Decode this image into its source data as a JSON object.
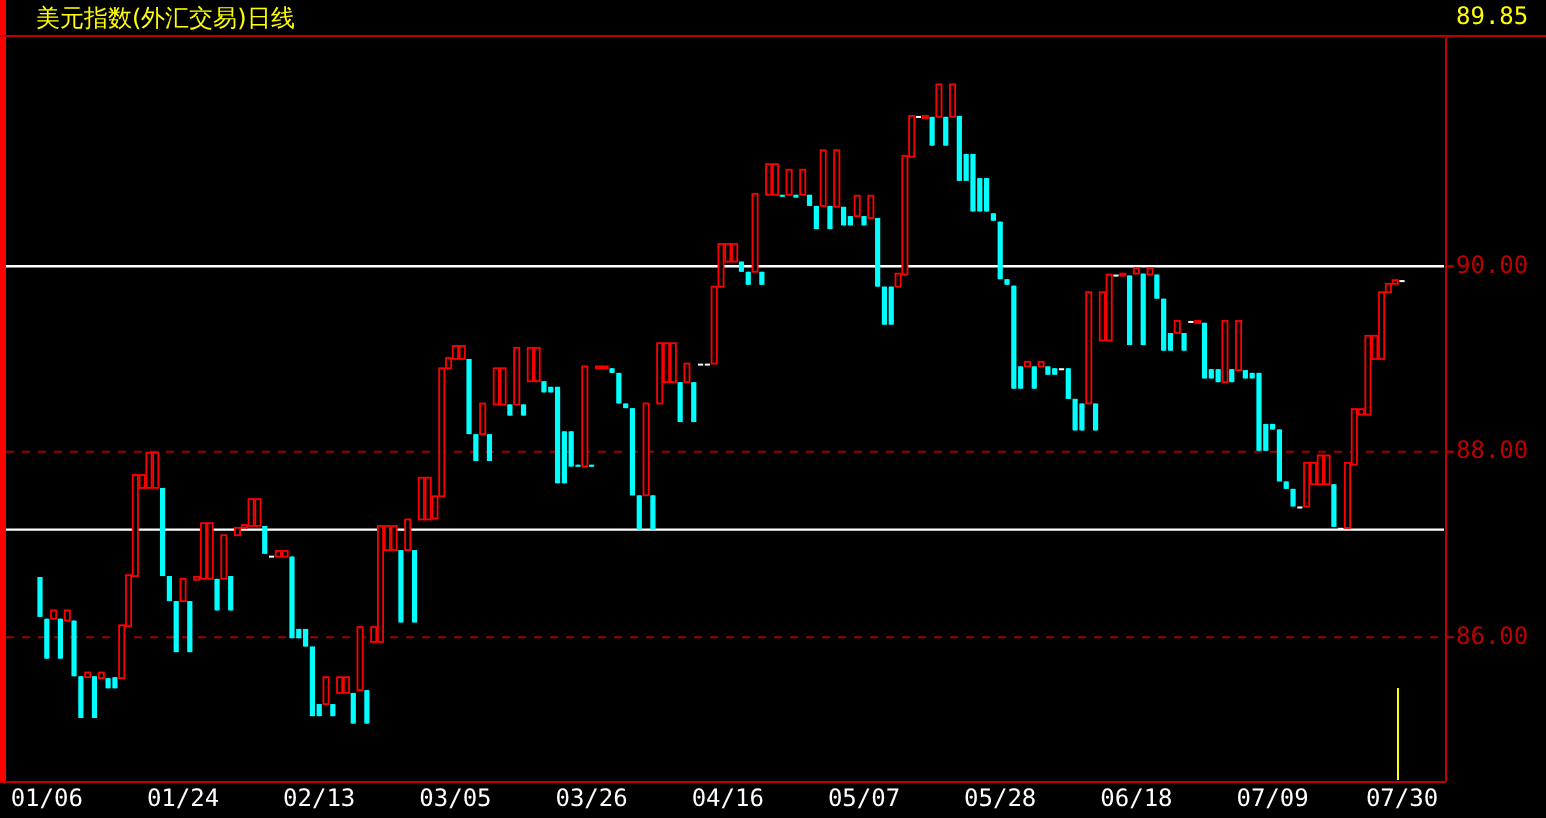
{
  "chart_data": {
    "type": "candlestick",
    "title": "美元指数(外汇交易)日线",
    "categories": [
      null,
      "01/06",
      null,
      null,
      null,
      null,
      null,
      null,
      null,
      null,
      null,
      null,
      null,
      null,
      null,
      null,
      null,
      null,
      null,
      null,
      null,
      "01/24",
      null,
      null,
      null,
      null,
      null,
      null,
      null,
      null,
      null,
      null,
      null,
      null,
      null,
      null,
      null,
      null,
      null,
      null,
      null,
      "02/13",
      null,
      null,
      null,
      null,
      null,
      null,
      null,
      null,
      null,
      null,
      null,
      null,
      null,
      null,
      null,
      null,
      null,
      null,
      null,
      "03/05",
      null,
      null,
      null,
      null,
      null,
      null,
      null,
      null,
      null,
      null,
      null,
      null,
      null,
      null,
      null,
      null,
      null,
      null,
      null,
      "03/26",
      null,
      null,
      null,
      null,
      null,
      null,
      null,
      null,
      null,
      null,
      null,
      null,
      null,
      null,
      null,
      null,
      null,
      null,
      null,
      "04/16",
      null,
      null,
      null,
      null,
      null,
      null,
      null,
      null,
      null,
      null,
      null,
      null,
      null,
      null,
      null,
      null,
      null,
      null,
      null,
      "05/07",
      null,
      null,
      null,
      null,
      null,
      null,
      null,
      null,
      null,
      null,
      null,
      null,
      null,
      null,
      null,
      null,
      null,
      null,
      null,
      "05/28",
      null,
      null,
      null,
      null,
      null,
      null,
      null,
      null,
      null,
      null,
      null,
      null,
      null,
      null,
      null,
      null,
      null,
      null,
      null,
      "06/18",
      null,
      null,
      null,
      null,
      null,
      null,
      null,
      null,
      null,
      null,
      null,
      null,
      null,
      null,
      null,
      null,
      null,
      null,
      null,
      "07/09",
      null,
      null,
      null,
      null,
      null,
      null,
      null,
      null,
      null,
      null,
      null,
      null,
      null,
      null,
      null,
      null,
      null,
      null,
      "07/30"
    ],
    "ohlc": [
      [
        86.65,
        86.65,
        86.22,
        86.22
      ],
      [
        86.2,
        86.2,
        85.77,
        85.77
      ],
      [
        86.2,
        86.29,
        86.2,
        86.29
      ],
      [
        86.2,
        86.2,
        85.77,
        85.77
      ],
      [
        86.18,
        86.29,
        86.18,
        86.29
      ],
      [
        86.18,
        86.18,
        85.58,
        85.58
      ],
      [
        85.58,
        85.58,
        85.13,
        85.13
      ],
      [
        85.57,
        85.62,
        85.57,
        85.62
      ],
      [
        85.58,
        85.58,
        85.13,
        85.13
      ],
      [
        85.56,
        85.62,
        85.56,
        85.62
      ],
      [
        85.56,
        85.56,
        85.45,
        85.45
      ],
      [
        85.57,
        85.57,
        85.45,
        85.45
      ],
      [
        85.56,
        86.13,
        85.56,
        86.13
      ],
      [
        86.12,
        86.67,
        86.12,
        86.67
      ],
      [
        86.66,
        87.75,
        86.66,
        87.75
      ],
      [
        87.61,
        87.75,
        87.61,
        87.75
      ],
      [
        87.61,
        87.99,
        87.61,
        87.99
      ],
      [
        87.61,
        87.99,
        87.61,
        87.99
      ],
      [
        87.61,
        87.61,
        86.66,
        86.66
      ],
      [
        86.66,
        86.66,
        86.39,
        86.39
      ],
      [
        86.39,
        86.39,
        85.84,
        85.84
      ],
      [
        86.39,
        86.63,
        86.39,
        86.63
      ],
      [
        86.39,
        86.39,
        85.84,
        85.84
      ],
      [
        86.62,
        86.65,
        86.62,
        86.65
      ],
      [
        86.63,
        87.23,
        86.63,
        87.23
      ],
      [
        86.63,
        87.23,
        86.63,
        87.23
      ],
      [
        86.63,
        86.63,
        86.29,
        86.29
      ],
      [
        86.63,
        87.1,
        86.63,
        87.1
      ],
      [
        86.66,
        86.66,
        86.29,
        86.29
      ],
      [
        87.1,
        87.18,
        87.1,
        87.18
      ],
      [
        87.18,
        87.21,
        87.18,
        87.21
      ],
      [
        87.2,
        87.49,
        87.2,
        87.49
      ],
      [
        87.2,
        87.49,
        87.2,
        87.49
      ],
      [
        87.2,
        87.2,
        86.9,
        86.9
      ],
      [
        86.88,
        86.88,
        86.88,
        86.88
      ],
      [
        86.87,
        86.93,
        86.87,
        86.93
      ],
      [
        86.87,
        86.93,
        86.87,
        86.93
      ],
      [
        86.87,
        86.87,
        85.99,
        85.99
      ],
      [
        86.09,
        86.09,
        85.99,
        85.99
      ],
      [
        86.09,
        86.09,
        85.9,
        85.9
      ],
      [
        85.9,
        85.9,
        85.15,
        85.15
      ],
      [
        85.28,
        85.28,
        85.15,
        85.15
      ],
      [
        85.28,
        85.57,
        85.28,
        85.57
      ],
      [
        85.28,
        85.28,
        85.15,
        85.15
      ],
      [
        85.4,
        85.57,
        85.4,
        85.57
      ],
      [
        85.4,
        85.57,
        85.4,
        85.57
      ],
      [
        85.4,
        85.4,
        85.07,
        85.07
      ],
      [
        85.43,
        86.11,
        85.43,
        86.11
      ],
      [
        85.43,
        85.43,
        85.07,
        85.07
      ],
      [
        85.95,
        86.11,
        85.95,
        86.11
      ],
      [
        85.95,
        87.2,
        85.95,
        87.2
      ],
      [
        86.94,
        87.2,
        86.94,
        87.2
      ],
      [
        86.94,
        87.2,
        86.94,
        87.2
      ],
      [
        86.94,
        86.94,
        86.16,
        86.16
      ],
      [
        86.94,
        87.27,
        86.94,
        87.27
      ],
      [
        86.94,
        86.94,
        86.16,
        86.16
      ],
      [
        87.27,
        87.72,
        87.27,
        87.72
      ],
      [
        87.27,
        87.72,
        87.27,
        87.72
      ],
      [
        87.28,
        87.52,
        87.28,
        87.52
      ],
      [
        87.52,
        88.9,
        87.52,
        88.9
      ],
      [
        88.9,
        89.01,
        88.9,
        89.01
      ],
      [
        89.0,
        89.14,
        89.0,
        89.14
      ],
      [
        89.0,
        89.14,
        89.0,
        89.14
      ],
      [
        89.0,
        89.0,
        88.19,
        88.19
      ],
      [
        88.19,
        88.19,
        87.9,
        87.9
      ],
      [
        88.19,
        88.52,
        88.19,
        88.52
      ],
      [
        88.19,
        88.19,
        87.9,
        87.9
      ],
      [
        88.51,
        88.9,
        88.51,
        88.9
      ],
      [
        88.51,
        88.9,
        88.51,
        88.9
      ],
      [
        88.51,
        88.51,
        88.39,
        88.39
      ],
      [
        88.51,
        89.12,
        88.51,
        89.12
      ],
      [
        88.51,
        88.51,
        88.39,
        88.39
      ],
      [
        88.76,
        89.12,
        88.76,
        89.12
      ],
      [
        88.76,
        89.12,
        88.76,
        89.12
      ],
      [
        88.76,
        88.76,
        88.64,
        88.64
      ],
      [
        88.7,
        88.7,
        88.64,
        88.64
      ],
      [
        88.7,
        88.7,
        87.66,
        87.66
      ],
      [
        88.22,
        88.22,
        87.66,
        87.66
      ],
      [
        88.22,
        88.22,
        87.84,
        87.84
      ],
      [
        87.86,
        87.86,
        87.84,
        87.84
      ],
      [
        87.84,
        88.92,
        87.84,
        88.92
      ],
      [
        87.86,
        87.86,
        87.84,
        87.84
      ],
      [
        88.9,
        88.92,
        88.9,
        88.92
      ],
      [
        88.9,
        88.92,
        88.9,
        88.92
      ],
      [
        88.9,
        88.9,
        88.85,
        88.85
      ],
      [
        88.85,
        88.85,
        88.52,
        88.52
      ],
      [
        88.52,
        88.52,
        88.47,
        88.47
      ],
      [
        88.47,
        88.47,
        87.53,
        87.53
      ],
      [
        87.53,
        87.53,
        87.16,
        87.16
      ],
      [
        87.53,
        88.52,
        87.53,
        88.52
      ],
      [
        87.53,
        87.53,
        87.16,
        87.16
      ],
      [
        88.52,
        89.17,
        88.52,
        89.17
      ],
      [
        88.75,
        89.17,
        88.75,
        89.17
      ],
      [
        88.75,
        89.17,
        88.75,
        89.17
      ],
      [
        88.75,
        88.75,
        88.32,
        88.32
      ],
      [
        88.75,
        88.95,
        88.75,
        88.95
      ],
      [
        88.75,
        88.75,
        88.32,
        88.32
      ],
      [
        88.95,
        88.95,
        88.95,
        88.95
      ],
      [
        88.95,
        88.95,
        88.95,
        88.95
      ],
      [
        88.95,
        89.78,
        88.95,
        89.78
      ],
      [
        89.78,
        90.24,
        89.78,
        90.24
      ],
      [
        90.05,
        90.24,
        90.05,
        90.24
      ],
      [
        90.05,
        90.24,
        90.05,
        90.24
      ],
      [
        90.05,
        90.05,
        89.94,
        89.94
      ],
      [
        89.94,
        89.94,
        89.8,
        89.8
      ],
      [
        89.94,
        90.78,
        89.94,
        90.78
      ],
      [
        89.94,
        89.94,
        89.8,
        89.8
      ],
      [
        90.77,
        91.1,
        90.77,
        91.1
      ],
      [
        90.77,
        91.1,
        90.77,
        91.1
      ],
      [
        90.77,
        90.77,
        90.75,
        90.75
      ],
      [
        90.77,
        91.04,
        90.77,
        91.04
      ],
      [
        90.77,
        90.77,
        90.74,
        90.74
      ],
      [
        90.77,
        91.04,
        90.77,
        91.04
      ],
      [
        90.77,
        90.77,
        90.65,
        90.65
      ],
      [
        90.65,
        90.65,
        90.4,
        90.4
      ],
      [
        90.65,
        91.25,
        90.65,
        91.25
      ],
      [
        90.65,
        90.65,
        90.4,
        90.4
      ],
      [
        90.64,
        91.25,
        90.64,
        91.25
      ],
      [
        90.64,
        90.64,
        90.44,
        90.44
      ],
      [
        90.54,
        90.54,
        90.44,
        90.44
      ],
      [
        90.54,
        90.76,
        90.54,
        90.76
      ],
      [
        90.54,
        90.54,
        90.44,
        90.44
      ],
      [
        90.52,
        90.76,
        90.52,
        90.76
      ],
      [
        90.52,
        90.52,
        89.78,
        89.78
      ],
      [
        89.78,
        89.78,
        89.37,
        89.37
      ],
      [
        89.78,
        89.78,
        89.37,
        89.37
      ],
      [
        89.78,
        89.92,
        89.78,
        89.92
      ],
      [
        89.91,
        91.19,
        89.91,
        91.19
      ],
      [
        91.18,
        91.62,
        91.18,
        91.62
      ],
      [
        91.62,
        91.62,
        91.62,
        91.62
      ],
      [
        91.61,
        91.62,
        91.61,
        91.62
      ],
      [
        91.61,
        91.61,
        91.3,
        91.3
      ],
      [
        91.61,
        91.96,
        91.61,
        91.96
      ],
      [
        91.61,
        91.61,
        91.3,
        91.3
      ],
      [
        91.61,
        91.96,
        91.61,
        91.96
      ],
      [
        91.62,
        91.62,
        90.92,
        90.92
      ],
      [
        91.21,
        91.21,
        90.92,
        90.92
      ],
      [
        91.21,
        91.21,
        90.59,
        90.59
      ],
      [
        90.95,
        90.95,
        90.59,
        90.59
      ],
      [
        90.95,
        90.95,
        90.59,
        90.59
      ],
      [
        90.57,
        90.57,
        90.49,
        90.49
      ],
      [
        90.48,
        90.48,
        89.86,
        89.86
      ],
      [
        89.86,
        89.86,
        89.8,
        89.8
      ],
      [
        89.79,
        89.79,
        88.68,
        88.68
      ],
      [
        88.92,
        88.92,
        88.68,
        88.68
      ],
      [
        88.92,
        88.97,
        88.92,
        88.97
      ],
      [
        88.92,
        88.92,
        88.68,
        88.68
      ],
      [
        88.92,
        88.97,
        88.92,
        88.97
      ],
      [
        88.92,
        88.92,
        88.83,
        88.83
      ],
      [
        88.9,
        88.9,
        88.83,
        88.83
      ],
      [
        88.9,
        88.9,
        88.9,
        88.9
      ],
      [
        88.9,
        88.9,
        88.57,
        88.57
      ],
      [
        88.57,
        88.57,
        88.23,
        88.23
      ],
      [
        88.52,
        88.52,
        88.23,
        88.23
      ],
      [
        88.52,
        89.72,
        88.52,
        89.72
      ],
      [
        88.52,
        88.52,
        88.23,
        88.23
      ],
      [
        89.2,
        89.72,
        89.2,
        89.72
      ],
      [
        89.2,
        89.91,
        89.2,
        89.91
      ],
      [
        89.91,
        89.91,
        89.91,
        89.91
      ],
      [
        89.9,
        89.92,
        89.9,
        89.92
      ],
      [
        89.9,
        89.9,
        89.15,
        89.15
      ],
      [
        89.92,
        89.98,
        89.92,
        89.98
      ],
      [
        89.92,
        89.92,
        89.15,
        89.15
      ],
      [
        89.91,
        89.98,
        89.91,
        89.98
      ],
      [
        89.91,
        89.91,
        89.65,
        89.65
      ],
      [
        89.65,
        89.65,
        89.09,
        89.09
      ],
      [
        89.28,
        89.28,
        89.09,
        89.09
      ],
      [
        89.28,
        89.41,
        89.28,
        89.41
      ],
      [
        89.28,
        89.28,
        89.09,
        89.09
      ],
      [
        89.41,
        89.41,
        89.41,
        89.41
      ],
      [
        89.39,
        89.41,
        89.39,
        89.41
      ],
      [
        89.39,
        89.39,
        88.79,
        88.79
      ],
      [
        88.89,
        88.89,
        88.79,
        88.79
      ],
      [
        88.89,
        88.89,
        88.75,
        88.75
      ],
      [
        88.75,
        89.41,
        88.75,
        89.41
      ],
      [
        88.89,
        88.89,
        88.75,
        88.75
      ],
      [
        88.88,
        89.41,
        88.88,
        89.41
      ],
      [
        88.88,
        88.88,
        88.79,
        88.79
      ],
      [
        88.85,
        88.85,
        88.79,
        88.79
      ],
      [
        88.85,
        88.85,
        88.01,
        88.01
      ],
      [
        88.3,
        88.3,
        88.01,
        88.01
      ],
      [
        88.3,
        88.3,
        88.24,
        88.24
      ],
      [
        88.24,
        88.24,
        87.68,
        87.68
      ],
      [
        87.68,
        87.68,
        87.6,
        87.6
      ],
      [
        87.6,
        87.6,
        87.41,
        87.41
      ],
      [
        87.41,
        87.41,
        87.41,
        87.41
      ],
      [
        87.41,
        87.88,
        87.41,
        87.88
      ],
      [
        87.65,
        87.88,
        87.65,
        87.88
      ],
      [
        87.65,
        87.96,
        87.65,
        87.96
      ],
      [
        87.65,
        87.96,
        87.65,
        87.96
      ],
      [
        87.65,
        87.65,
        87.19,
        87.19
      ],
      [
        87.18,
        87.18,
        87.18,
        87.18
      ],
      [
        87.18,
        87.88,
        87.18,
        87.88
      ],
      [
        87.86,
        88.46,
        87.86,
        88.46
      ],
      [
        88.4,
        88.46,
        88.4,
        88.46
      ],
      [
        88.4,
        89.25,
        88.4,
        89.25
      ],
      [
        89.0,
        89.25,
        89.0,
        89.25
      ],
      [
        89.0,
        89.72,
        89.0,
        89.72
      ],
      [
        89.72,
        89.81,
        89.72,
        89.81
      ],
      [
        89.81,
        89.85,
        89.81,
        89.85
      ],
      [
        89.85,
        89.85,
        89.85,
        89.85
      ]
    ],
    "colors": [
      "#00ffff",
      "#00ffff",
      "#ff0000",
      "#00ffff",
      "#ff0000",
      "#00ffff",
      "#00ffff",
      "#ff0000",
      "#00ffff",
      "#ff0000",
      "#00ffff",
      "#00ffff",
      "#ff0000",
      "#ff0000",
      "#ff0000",
      "#ff0000",
      "#ff0000",
      "#ff0000",
      "#00ffff",
      "#00ffff",
      "#00ffff",
      "#ff0000",
      "#00ffff",
      "#ff0000",
      "#ff0000",
      "#ff0000",
      "#00ffff",
      "#ff0000",
      "#00ffff",
      "#ff0000",
      "#ff0000",
      "#ff0000",
      "#ff0000",
      "#00ffff",
      "#ffffff",
      "#ff0000",
      "#ff0000",
      "#00ffff",
      "#00ffff",
      "#00ffff",
      "#00ffff",
      "#00ffff",
      "#ff0000",
      "#00ffff",
      "#ff0000",
      "#ff0000",
      "#00ffff",
      "#ff0000",
      "#00ffff",
      "#ff0000",
      "#ff0000",
      "#ff0000",
      "#ff0000",
      "#00ffff",
      "#ff0000",
      "#00ffff",
      "#ff0000",
      "#ff0000",
      "#ff0000",
      "#ff0000",
      "#ff0000",
      "#ff0000",
      "#ff0000",
      "#00ffff",
      "#00ffff",
      "#ff0000",
      "#00ffff",
      "#ff0000",
      "#ff0000",
      "#00ffff",
      "#ff0000",
      "#00ffff",
      "#ff0000",
      "#ff0000",
      "#00ffff",
      "#00ffff",
      "#00ffff",
      "#00ffff",
      "#00ffff",
      "#00ffff",
      "#ff0000",
      "#00ffff",
      "#ff0000",
      "#ff0000",
      "#00ffff",
      "#00ffff",
      "#00ffff",
      "#00ffff",
      "#00ffff",
      "#ff0000",
      "#00ffff",
      "#ff0000",
      "#ff0000",
      "#ff0000",
      "#00ffff",
      "#ff0000",
      "#00ffff",
      "#ffffff",
      "#ffffff",
      "#ff0000",
      "#ff0000",
      "#ff0000",
      "#ff0000",
      "#00ffff",
      "#00ffff",
      "#ff0000",
      "#00ffff",
      "#ff0000",
      "#ff0000",
      "#00ffff",
      "#ff0000",
      "#00ffff",
      "#ff0000",
      "#00ffff",
      "#00ffff",
      "#ff0000",
      "#00ffff",
      "#ff0000",
      "#00ffff",
      "#00ffff",
      "#ff0000",
      "#00ffff",
      "#ff0000",
      "#00ffff",
      "#00ffff",
      "#00ffff",
      "#ff0000",
      "#ff0000",
      "#ff0000",
      "#ffffff",
      "#ff0000",
      "#00ffff",
      "#ff0000",
      "#00ffff",
      "#ff0000",
      "#00ffff",
      "#00ffff",
      "#00ffff",
      "#00ffff",
      "#00ffff",
      "#00ffff",
      "#00ffff",
      "#00ffff",
      "#00ffff",
      "#00ffff",
      "#ff0000",
      "#00ffff",
      "#ff0000",
      "#00ffff",
      "#00ffff",
      "#ffffff",
      "#00ffff",
      "#00ffff",
      "#00ffff",
      "#ff0000",
      "#00ffff",
      "#ff0000",
      "#ff0000",
      "#ffffff",
      "#ff0000",
      "#00ffff",
      "#ff0000",
      "#00ffff",
      "#ff0000",
      "#00ffff",
      "#00ffff",
      "#00ffff",
      "#ff0000",
      "#00ffff",
      "#ffffff",
      "#ff0000",
      "#00ffff",
      "#00ffff",
      "#00ffff",
      "#ff0000",
      "#00ffff",
      "#ff0000",
      "#00ffff",
      "#00ffff",
      "#00ffff",
      "#00ffff",
      "#00ffff",
      "#00ffff",
      "#00ffff",
      "#00ffff",
      "#ffffff",
      "#ff0000",
      "#ff0000",
      "#ff0000",
      "#ff0000",
      "#00ffff",
      "#ffffff",
      "#ff0000",
      "#ff0000",
      "#ff0000",
      "#ff0000",
      "#ff0000",
      "#ff0000",
      "#ff0000",
      "#ff0000",
      "#ffffff"
    ],
    "ylim": [
      84.44,
      92.46
    ],
    "yticks": [
      {
        "value": 86,
        "label": "86.00"
      },
      {
        "value": 88,
        "label": "88.00"
      },
      {
        "value": 90,
        "label": "90.00"
      }
    ],
    "grid": "y",
    "ref_lines": [
      {
        "axis": "y",
        "value": 90,
        "color": "#ffffff"
      },
      {
        "axis": "y",
        "value": 87.16,
        "color": "#ffffff"
      }
    ],
    "annotations": [
      "89.85"
    ]
  }
}
